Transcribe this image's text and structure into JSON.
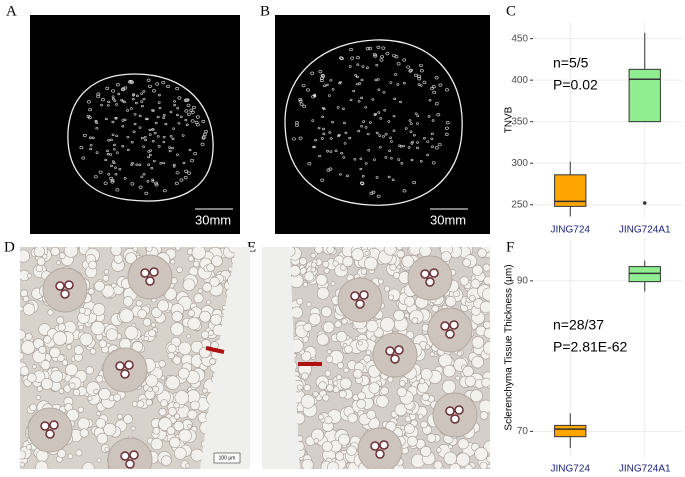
{
  "panels": {
    "labels": [
      "A",
      "B",
      "C",
      "D",
      "E",
      "F"
    ],
    "scale_bars": [
      "30mm",
      "30mm",
      "100 μm"
    ]
  },
  "chart_data": [
    {
      "type": "box",
      "y_label": "TNVB",
      "annotations": [
        "n=5/5",
        "P=0.02"
      ],
      "categories": [
        "JING724",
        "JING724A1"
      ],
      "colors": [
        "#ffa500",
        "#90ee90"
      ],
      "min": [
        236,
        350
      ],
      "q1": [
        248,
        350
      ],
      "median": [
        254,
        401
      ],
      "q3": [
        286,
        413
      ],
      "max": [
        302,
        457
      ],
      "outliers": [
        [],
        [
          252
        ]
      ],
      "ylim": [
        234,
        470
      ],
      "yticks": [
        250,
        300,
        350,
        400,
        450
      ],
      "grid": true
    },
    {
      "type": "box",
      "y_label": "Sclerenchyma Tissue Thickness (μm)",
      "annotations": [
        "n=28/37",
        "P=2.81E-62"
      ],
      "categories": [
        "JING724",
        "JING724A1"
      ],
      "colors": [
        "#ffa500",
        "#90ee90"
      ],
      "min": [
        67.8,
        88.6
      ],
      "q1": [
        69.3,
        89.9
      ],
      "median": [
        70.3,
        91
      ],
      "q3": [
        70.8,
        91.9
      ],
      "max": [
        72.4,
        92.7
      ],
      "outliers": [
        [],
        []
      ],
      "ylim": [
        66.6,
        95.7
      ],
      "yticks": [
        70,
        90
      ],
      "grid": true
    }
  ]
}
